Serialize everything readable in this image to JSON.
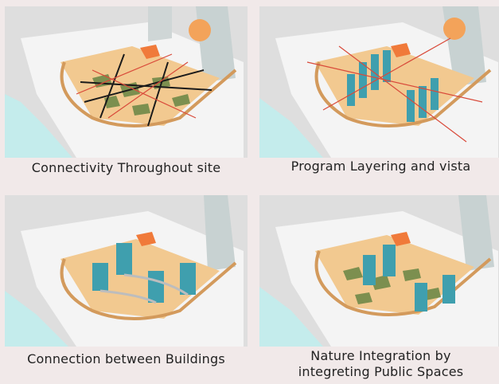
{
  "panels": [
    {
      "caption": "Connectivity Throughout site"
    },
    {
      "caption": "Program Layering and vista"
    },
    {
      "caption": "Connection  between Buildings"
    },
    {
      "caption_lines": [
        "Nature Integration by",
        "integreting Public Spaces"
      ]
    }
  ],
  "colors": {
    "background": "#f1e9e9",
    "ground": "#dcdcdc",
    "site_base": "#f3f3f3",
    "plaza": "#f2c990",
    "water": "#bfeaea",
    "buildings": "#3f9fae",
    "walkway": "#d39a5c",
    "green_patches": "#7c8f4f",
    "highlight_block": "#f07a3a",
    "connectivity_lines": [
      "#1a1a1a",
      "#d94a3a"
    ]
  }
}
